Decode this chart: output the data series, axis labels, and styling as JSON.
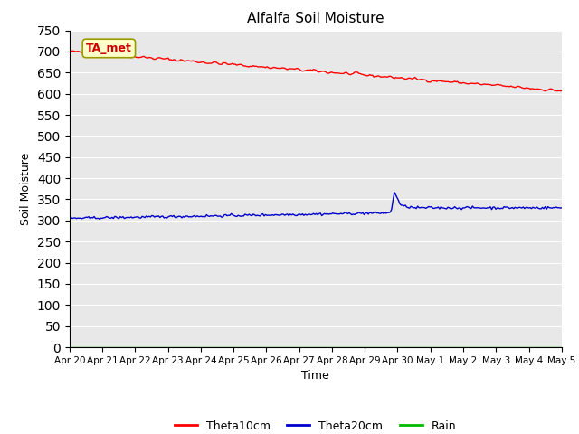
{
  "title": "Alfalfa Soil Moisture",
  "xlabel": "Time",
  "ylabel": "Soil Moisture",
  "ylim": [
    0,
    750
  ],
  "yticks": [
    0,
    50,
    100,
    150,
    200,
    250,
    300,
    350,
    400,
    450,
    500,
    550,
    600,
    650,
    700,
    750
  ],
  "annotation_text": "TA_met",
  "theta10_color": "#ff0000",
  "theta20_color": "#0000cc",
  "rain_color": "#00bb00",
  "background_color": "#e8e8e8",
  "legend_labels": [
    "Theta10cm",
    "Theta20cm",
    "Rain"
  ],
  "legend_colors": [
    "#ff0000",
    "#0000cc",
    "#00bb00"
  ],
  "tick_labels": [
    "Apr 20",
    "Apr 21",
    "Apr 22",
    "Apr 23",
    "Apr 24",
    "Apr 25",
    "Apr 26",
    "Apr 27",
    "Apr 28",
    "Apr 29",
    "Apr 30",
    "May 1",
    "May 2",
    "May 3",
    "May 4",
    "May 5"
  ]
}
